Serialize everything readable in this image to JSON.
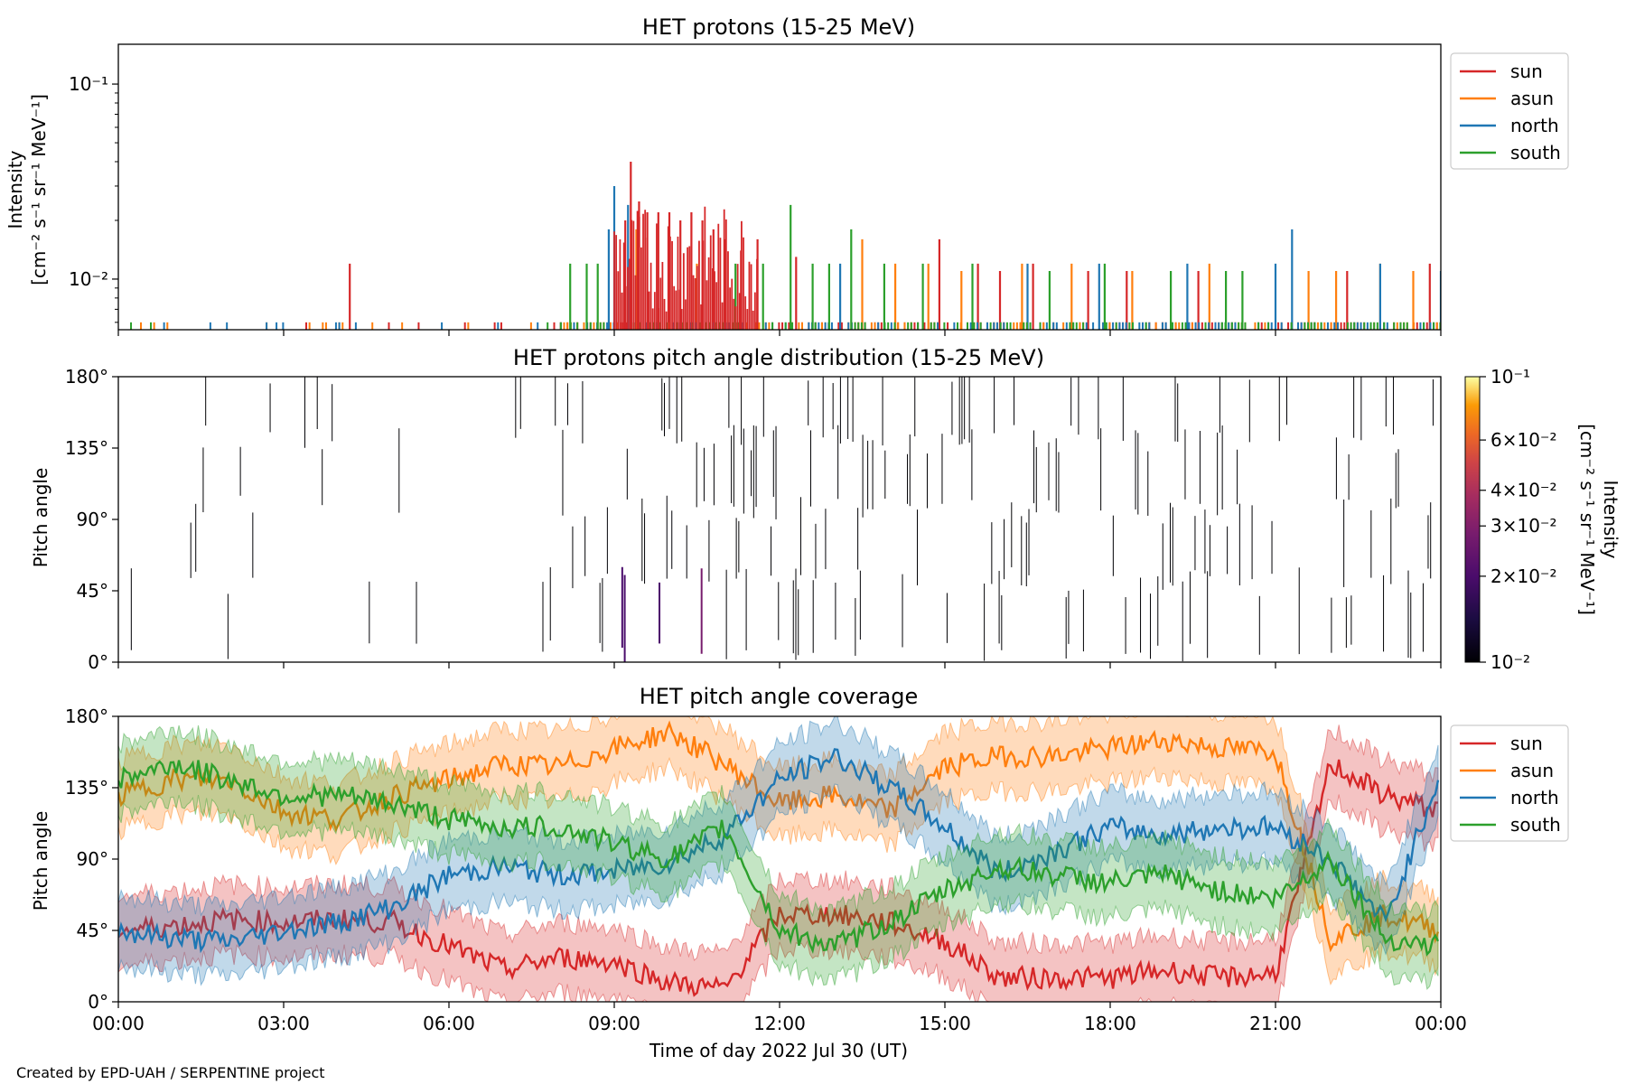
{
  "footer": "Created by EPD-UAH / SERPENTINE project",
  "xlabel": "Time of day 2022 Jul 30 (UT)",
  "time_ticks": [
    "00:00",
    "03:00",
    "06:00",
    "09:00",
    "12:00",
    "15:00",
    "18:00",
    "21:00",
    "00:00"
  ],
  "pitch_ticks": [
    "0°",
    "45°",
    "90°",
    "135°",
    "180°"
  ],
  "colors": {
    "sun": "#d62728",
    "asun": "#ff7f0e",
    "north": "#1f77b4",
    "south": "#2ca02c"
  },
  "chart_data": [
    {
      "type": "line",
      "title": "HET protons (15-25 MeV)",
      "ylabel_line1": "Intensity",
      "ylabel_line2": "[cm⁻² s⁻¹ sr⁻¹ MeV⁻¹]",
      "yscale": "log",
      "ylim": [
        0.0055,
        0.16
      ],
      "xlim_hours": [
        0,
        24
      ],
      "ytick_labels": [
        "10⁻²",
        "10⁻¹"
      ],
      "legend": {
        "position": "right-top",
        "entries": [
          "sun",
          "asun",
          "north",
          "south"
        ]
      },
      "baseline": 0.006,
      "series": [
        {
          "name": "sun",
          "spikes": [
            [
              4.2,
              0.012
            ],
            [
              9.2,
              0.02
            ],
            [
              9.3,
              0.04
            ],
            [
              9.45,
              0.025
            ],
            [
              9.6,
              0.022
            ],
            [
              9.8,
              0.022
            ],
            [
              10.0,
              0.022
            ],
            [
              10.2,
              0.02
            ],
            [
              10.4,
              0.022
            ],
            [
              10.6,
              0.02
            ],
            [
              10.8,
              0.018
            ],
            [
              11.0,
              0.016
            ],
            [
              11.3,
              0.014
            ],
            [
              11.6,
              0.016
            ],
            [
              12.3,
              0.013
            ],
            [
              14.9,
              0.016
            ],
            [
              15.6,
              0.012
            ],
            [
              16.0,
              0.011
            ],
            [
              16.6,
              0.012
            ],
            [
              17.6,
              0.011
            ],
            [
              18.3,
              0.011
            ],
            [
              19.6,
              0.011
            ],
            [
              22.3,
              0.011
            ],
            [
              23.8,
              0.012
            ]
          ]
        },
        {
          "name": "asun",
          "spikes": [
            [
              9.4,
              0.018
            ],
            [
              10.5,
              0.012
            ],
            [
              13.5,
              0.016
            ],
            [
              14.1,
              0.012
            ],
            [
              14.7,
              0.012
            ],
            [
              15.3,
              0.011
            ],
            [
              16.4,
              0.012
            ],
            [
              17.3,
              0.012
            ],
            [
              18.4,
              0.011
            ],
            [
              19.8,
              0.012
            ],
            [
              21.6,
              0.011
            ],
            [
              22.1,
              0.011
            ],
            [
              22.9,
              0.012
            ],
            [
              23.5,
              0.011
            ]
          ]
        },
        {
          "name": "north",
          "spikes": [
            [
              8.9,
              0.018
            ],
            [
              9.0,
              0.03
            ],
            [
              9.25,
              0.024
            ],
            [
              13.1,
              0.012
            ],
            [
              16.5,
              0.012
            ],
            [
              17.8,
              0.012
            ],
            [
              19.4,
              0.012
            ],
            [
              21.0,
              0.012
            ],
            [
              21.3,
              0.018
            ],
            [
              22.9,
              0.012
            ],
            [
              24.0,
              0.011
            ]
          ]
        },
        {
          "name": "south",
          "spikes": [
            [
              8.2,
              0.012
            ],
            [
              8.5,
              0.012
            ],
            [
              8.7,
              0.012
            ],
            [
              11.2,
              0.012
            ],
            [
              11.7,
              0.012
            ],
            [
              12.2,
              0.024
            ],
            [
              12.6,
              0.012
            ],
            [
              12.9,
              0.012
            ],
            [
              13.3,
              0.018
            ],
            [
              13.9,
              0.012
            ],
            [
              14.6,
              0.012
            ],
            [
              15.5,
              0.012
            ],
            [
              16.9,
              0.011
            ],
            [
              17.9,
              0.012
            ],
            [
              19.1,
              0.011
            ],
            [
              20.1,
              0.011
            ],
            [
              20.4,
              0.011
            ],
            [
              24.0,
              0.006
            ]
          ]
        }
      ]
    },
    {
      "type": "heatmap",
      "title": "HET protons pitch angle distribution (15-25 MeV)",
      "ylabel": "Pitch angle",
      "ylim": [
        0,
        180
      ],
      "xlim_hours": [
        0,
        24
      ],
      "colorbar": {
        "label_line1": "Intensity",
        "label_line2": "[cm⁻² s⁻¹ sr⁻¹ MeV⁻¹]",
        "scale": "log",
        "range": [
          0.01,
          0.1
        ],
        "colormap": "inferno",
        "tick_values": [
          0.01,
          0.02,
          0.03,
          0.04,
          0.06,
          0.1
        ],
        "tick_labels": [
          "10⁻²",
          "2×10⁻²",
          "3×10⁻²",
          "4×10⁻²",
          "6×10⁻²",
          "10⁻¹"
        ]
      }
    },
    {
      "type": "line",
      "title": "HET pitch angle coverage",
      "ylabel": "Pitch angle",
      "ylim": [
        0,
        180
      ],
      "xlim_hours": [
        0,
        24
      ],
      "legend": {
        "position": "right-top",
        "entries": [
          "sun",
          "asun",
          "north",
          "south"
        ]
      },
      "x": [
        0,
        1,
        2,
        3,
        4,
        5,
        6,
        7,
        8,
        9,
        10,
        11,
        12,
        13,
        14,
        15,
        16,
        17,
        18,
        19,
        20,
        21,
        22,
        23,
        24
      ],
      "series": [
        {
          "name": "sun",
          "values": [
            45,
            48,
            52,
            50,
            52,
            50,
            35,
            20,
            28,
            25,
            12,
            8,
            55,
            55,
            50,
            38,
            15,
            15,
            15,
            20,
            15,
            18,
            150,
            130,
            120
          ],
          "band": 22
        },
        {
          "name": "asun",
          "values": [
            130,
            140,
            140,
            120,
            115,
            130,
            140,
            150,
            148,
            160,
            170,
            150,
            125,
            130,
            120,
            148,
            155,
            155,
            160,
            165,
            160,
            158,
            40,
            55,
            45
          ],
          "band": 22
        },
        {
          "name": "north",
          "values": [
            45,
            40,
            38,
            45,
            50,
            60,
            80,
            85,
            80,
            82,
            88,
            105,
            140,
            155,
            135,
            110,
            80,
            95,
            110,
            105,
            110,
            110,
            90,
            50,
            145
          ],
          "band": 22
        },
        {
          "name": "south",
          "values": [
            140,
            150,
            140,
            130,
            130,
            125,
            115,
            110,
            110,
            100,
            90,
            110,
            45,
            35,
            50,
            70,
            85,
            80,
            75,
            80,
            70,
            65,
            90,
            40,
            35
          ],
          "band": 22
        }
      ]
    }
  ]
}
